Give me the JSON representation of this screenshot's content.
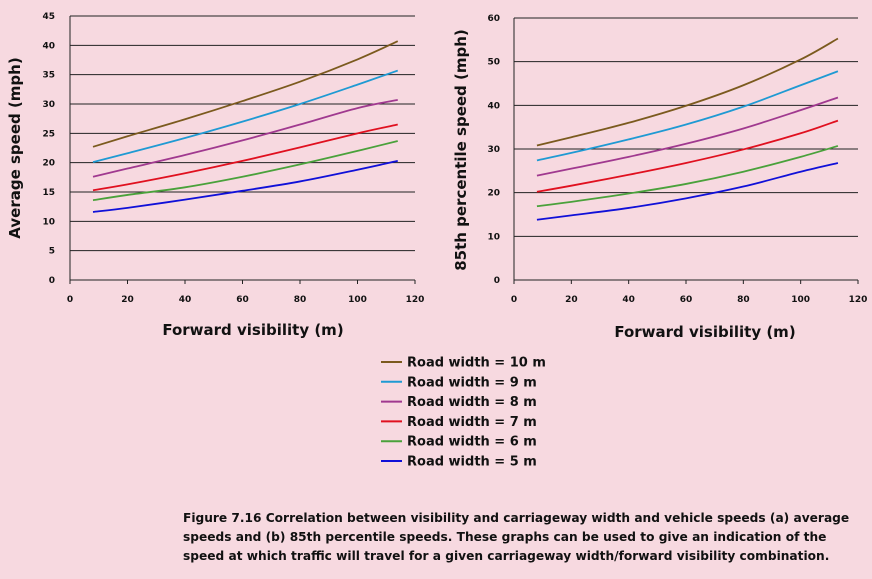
{
  "legend": [
    {
      "label": "Road width = 10 m",
      "color": "#7b5a1e"
    },
    {
      "label": "Road width = 9 m",
      "color": "#1f9ad3"
    },
    {
      "label": "Road width = 8 m",
      "color": "#a0398f"
    },
    {
      "label": "Road width = 7 m",
      "color": "#e0101f"
    },
    {
      "label": "Road width = 6 m",
      "color": "#4aa13b"
    },
    {
      "label": "Road width = 5 m",
      "color": "#1010d8"
    }
  ],
  "caption": "Figure 7.16 Correlation between visibility and carriageway width and vehicle speeds (a) average speeds and (b) 85th percentile speeds. These graphs can be used to give an indication of the speed at which traffic will travel for a given carriageway width/forward visibility combination.",
  "chart_data": [
    {
      "type": "line",
      "xlabel": "Forward visibility (m)",
      "ylabel": "Average speed (mph)",
      "xlim": [
        0,
        120
      ],
      "ylim": [
        0,
        45
      ],
      "xticks": [
        0,
        20,
        40,
        60,
        80,
        100,
        120
      ],
      "yticks": [
        0,
        5,
        10,
        15,
        20,
        25,
        30,
        35,
        40,
        45
      ],
      "grid": "horizontal",
      "x": [
        8,
        20,
        40,
        60,
        80,
        100,
        114
      ],
      "series": [
        {
          "name": "Road width = 10 m",
          "values": [
            22.7,
            24.5,
            27.4,
            30.5,
            33.8,
            37.6,
            40.7
          ]
        },
        {
          "name": "Road width = 9 m",
          "values": [
            20.1,
            21.6,
            24.2,
            27.0,
            30.0,
            33.3,
            35.7
          ]
        },
        {
          "name": "Road width = 8 m",
          "values": [
            17.6,
            19.0,
            21.3,
            23.8,
            26.5,
            29.3,
            30.7
          ]
        },
        {
          "name": "Road width = 7 m",
          "values": [
            15.3,
            16.3,
            18.2,
            20.3,
            22.6,
            25.0,
            26.5
          ]
        },
        {
          "name": "Road width = 6 m",
          "values": [
            13.6,
            14.5,
            15.8,
            17.6,
            19.7,
            22.0,
            23.7
          ]
        },
        {
          "name": "Road width = 5 m",
          "values": [
            11.6,
            12.3,
            13.7,
            15.2,
            16.8,
            18.8,
            20.3
          ]
        }
      ]
    },
    {
      "type": "line",
      "xlabel": "Forward visibility (m)",
      "ylabel": "85th percentile speed (mph)",
      "xlim": [
        0,
        120
      ],
      "ylim": [
        0,
        60
      ],
      "xticks": [
        0,
        20,
        40,
        60,
        80,
        100,
        120
      ],
      "yticks": [
        0,
        10,
        20,
        30,
        40,
        50,
        60
      ],
      "grid": "horizontal",
      "x": [
        8,
        20,
        40,
        60,
        80,
        100,
        113
      ],
      "series": [
        {
          "name": "Road width = 10 m",
          "values": [
            30.8,
            32.7,
            36.0,
            39.9,
            44.6,
            50.5,
            55.3
          ]
        },
        {
          "name": "Road width = 9 m",
          "values": [
            27.4,
            29.1,
            32.2,
            35.6,
            39.7,
            44.6,
            47.8
          ]
        },
        {
          "name": "Road width = 8 m",
          "values": [
            23.9,
            25.5,
            28.2,
            31.2,
            34.7,
            38.9,
            41.8
          ]
        },
        {
          "name": "Road width = 7 m",
          "values": [
            20.2,
            21.6,
            24.1,
            26.8,
            29.9,
            33.6,
            36.5
          ]
        },
        {
          "name": "Road width = 6 m",
          "values": [
            16.9,
            17.9,
            19.8,
            22.0,
            24.8,
            28.2,
            30.7
          ]
        },
        {
          "name": "Road width = 5 m",
          "values": [
            13.8,
            14.8,
            16.5,
            18.7,
            21.4,
            24.8,
            26.8
          ]
        }
      ]
    }
  ]
}
